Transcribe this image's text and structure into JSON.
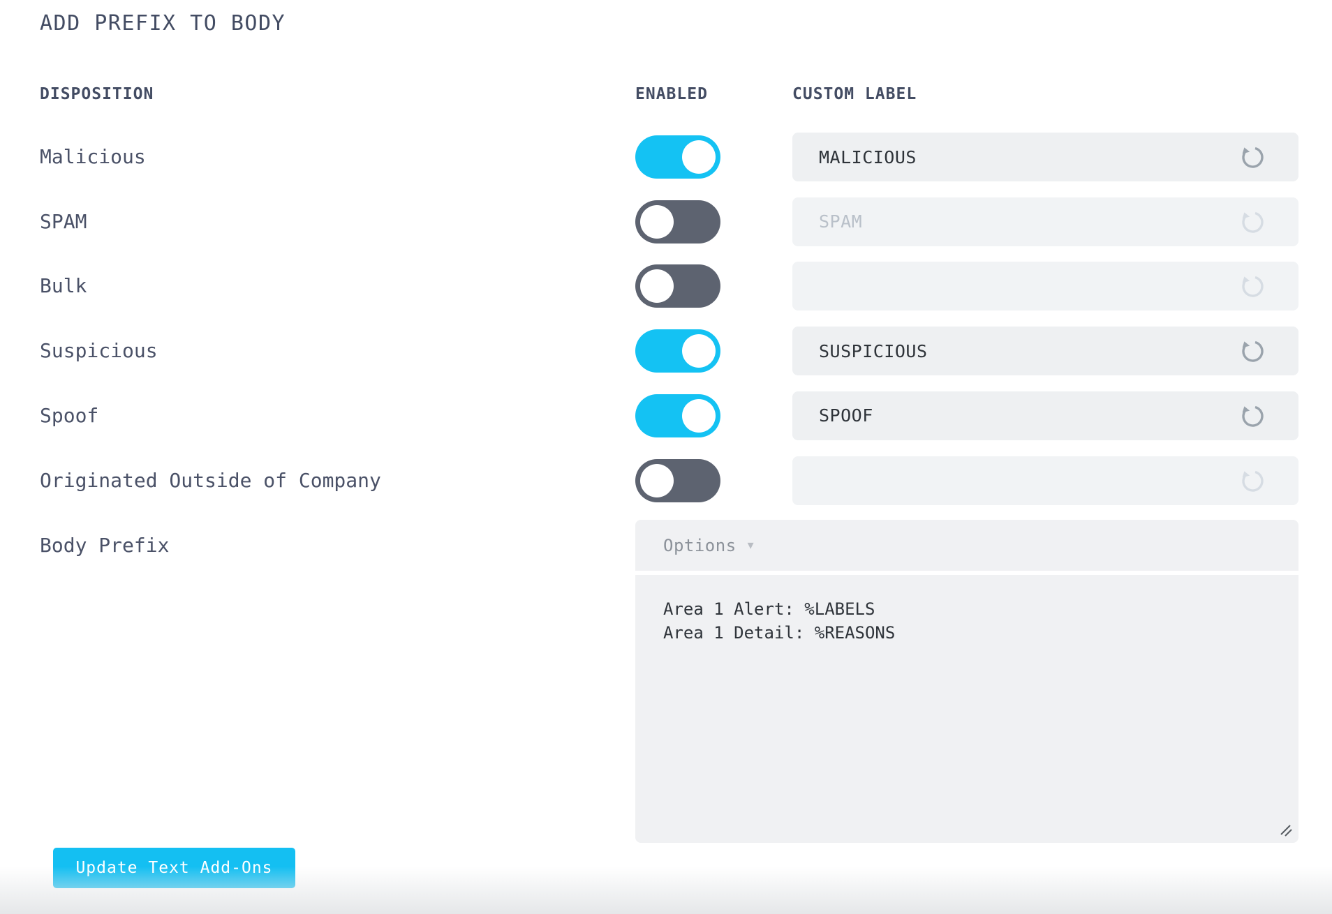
{
  "panel": {
    "title": "ADD PREFIX TO BODY"
  },
  "table": {
    "headers": {
      "disposition": "DISPOSITION",
      "enabled": "ENABLED",
      "custom_label": "CUSTOM LABEL"
    },
    "rows": [
      {
        "disposition": "Malicious",
        "enabled": true,
        "custom_label": "MALICIOUS",
        "placeholder": ""
      },
      {
        "disposition": "SPAM",
        "enabled": false,
        "custom_label": "",
        "placeholder": "SPAM"
      },
      {
        "disposition": "Bulk",
        "enabled": false,
        "custom_label": "",
        "placeholder": ""
      },
      {
        "disposition": "Suspicious",
        "enabled": true,
        "custom_label": "SUSPICIOUS",
        "placeholder": ""
      },
      {
        "disposition": "Spoof",
        "enabled": true,
        "custom_label": "SPOOF",
        "placeholder": ""
      },
      {
        "disposition": "Originated Outside of Company",
        "enabled": false,
        "custom_label": "",
        "placeholder": ""
      }
    ]
  },
  "body_prefix": {
    "label": "Body Prefix",
    "options_label": "Options",
    "dropdown_caret": "▾",
    "value": "Area 1 Alert: %LABELS\nArea 1 Detail: %REASONS"
  },
  "actions": {
    "update_button": "Update Text Add-Ons"
  },
  "icons": {
    "reset": "undo-circular-arrow",
    "caret": "chevron-down",
    "resize": "diagonal-resize-handle"
  },
  "colors": {
    "accent": "#14bff2",
    "toggle_on": "#14c2f3",
    "toggle_off": "#5d6370",
    "text_heading": "#434c63",
    "text_label": "#4a5167",
    "text_value": "#2e3339",
    "text_placeholder": "#b9c0c9",
    "field_bg": "#eef0f2",
    "icon_enabled": "#9aa3ac",
    "icon_disabled": "#d6dce3"
  }
}
